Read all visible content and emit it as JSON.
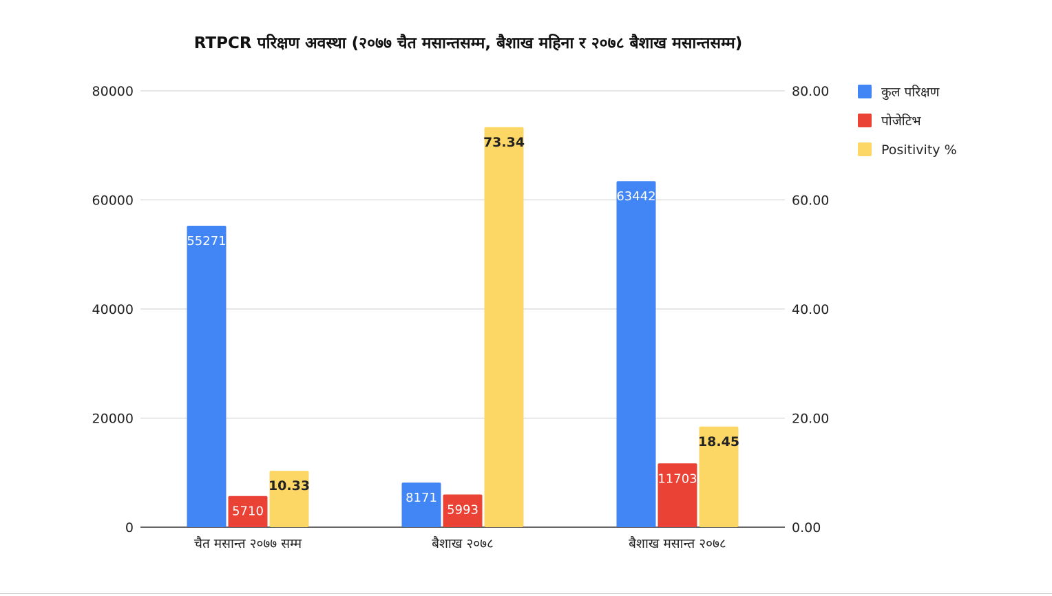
{
  "chart_data": {
    "type": "bar",
    "title": "RTPCR परिक्षण अवस्था (२०७७ चैत मसान्तसम्म, बैशाख महिना र २०७८ बैशाख मसान्तसम्म)",
    "categories": [
      "चैत मसान्त २०७७ सम्म",
      "बैशाख २०७८",
      "बैशाख मसान्त २०७८"
    ],
    "series": [
      {
        "name": "कुल परिक्षण",
        "axis": "left",
        "color": "#4285f4",
        "values": [
          55271,
          8171,
          63442
        ],
        "labels": [
          "55271",
          "8171",
          "63442"
        ]
      },
      {
        "name": "पोजेटिभ",
        "axis": "left",
        "color": "#ea4335",
        "values": [
          5710,
          5993,
          11703
        ],
        "labels": [
          "5710",
          "5993",
          "11703"
        ]
      },
      {
        "name": "Positivity %",
        "axis": "right",
        "color": "#fcd766",
        "values": [
          10.33,
          73.34,
          18.45
        ],
        "labels": [
          "10.33",
          "73.34",
          "18.45"
        ]
      }
    ],
    "y_left": {
      "min": 0,
      "max": 80000,
      "ticks": [
        "0",
        "20000",
        "40000",
        "60000",
        "80000"
      ]
    },
    "y_right": {
      "min": 0,
      "max": 80,
      "ticks": [
        "0.00",
        "20.00",
        "40.00",
        "60.00",
        "80.00"
      ]
    },
    "grid": true,
    "legend": "right"
  }
}
